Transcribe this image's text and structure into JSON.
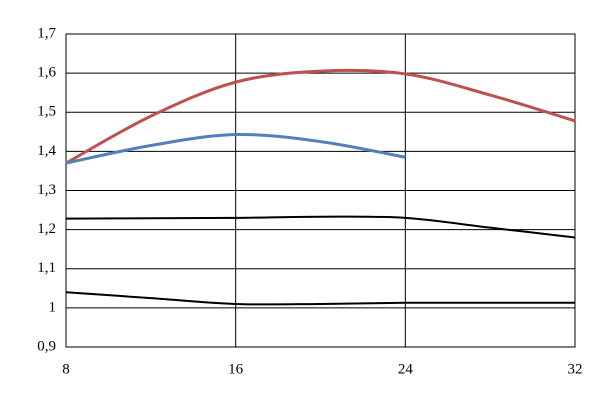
{
  "chart_data": {
    "type": "line",
    "x": [
      8,
      12,
      16,
      20,
      24,
      28,
      32
    ],
    "series": [
      {
        "color": "#c0504d",
        "values": [
          1.37,
          1.49,
          1.577,
          1.605,
          1.598,
          1.544,
          1.478
        ]
      },
      {
        "color": "#4f81bd",
        "values": [
          1.37,
          1.415,
          1.443,
          1.425,
          1.385,
          null,
          null
        ]
      },
      {
        "color": "#000000",
        "values": [
          1.228,
          1.229,
          1.23,
          1.233,
          1.23,
          1.205,
          1.18
        ]
      },
      {
        "color": "#000000",
        "values": [
          1.04,
          1.025,
          1.01,
          1.01,
          1.013,
          1.013,
          1.013
        ]
      }
    ],
    "xlim": [
      8,
      32
    ],
    "xticks": [
      8,
      16,
      24,
      32
    ],
    "ylim": [
      0.9,
      1.7
    ],
    "yticks": [
      {
        "value": 0.9,
        "label": "0,9"
      },
      1,
      {
        "value": 1.1,
        "label": "1,1"
      },
      {
        "value": 1.2,
        "label": "1,2"
      },
      {
        "value": 1.3,
        "label": "1,3"
      },
      {
        "value": 1.4,
        "label": "1,4"
      },
      {
        "value": 1.5,
        "label": "1,5"
      },
      {
        "value": 1.6,
        "label": "1,6"
      },
      {
        "value": 1.7,
        "label": "1,7"
      }
    ],
    "grid": true
  }
}
